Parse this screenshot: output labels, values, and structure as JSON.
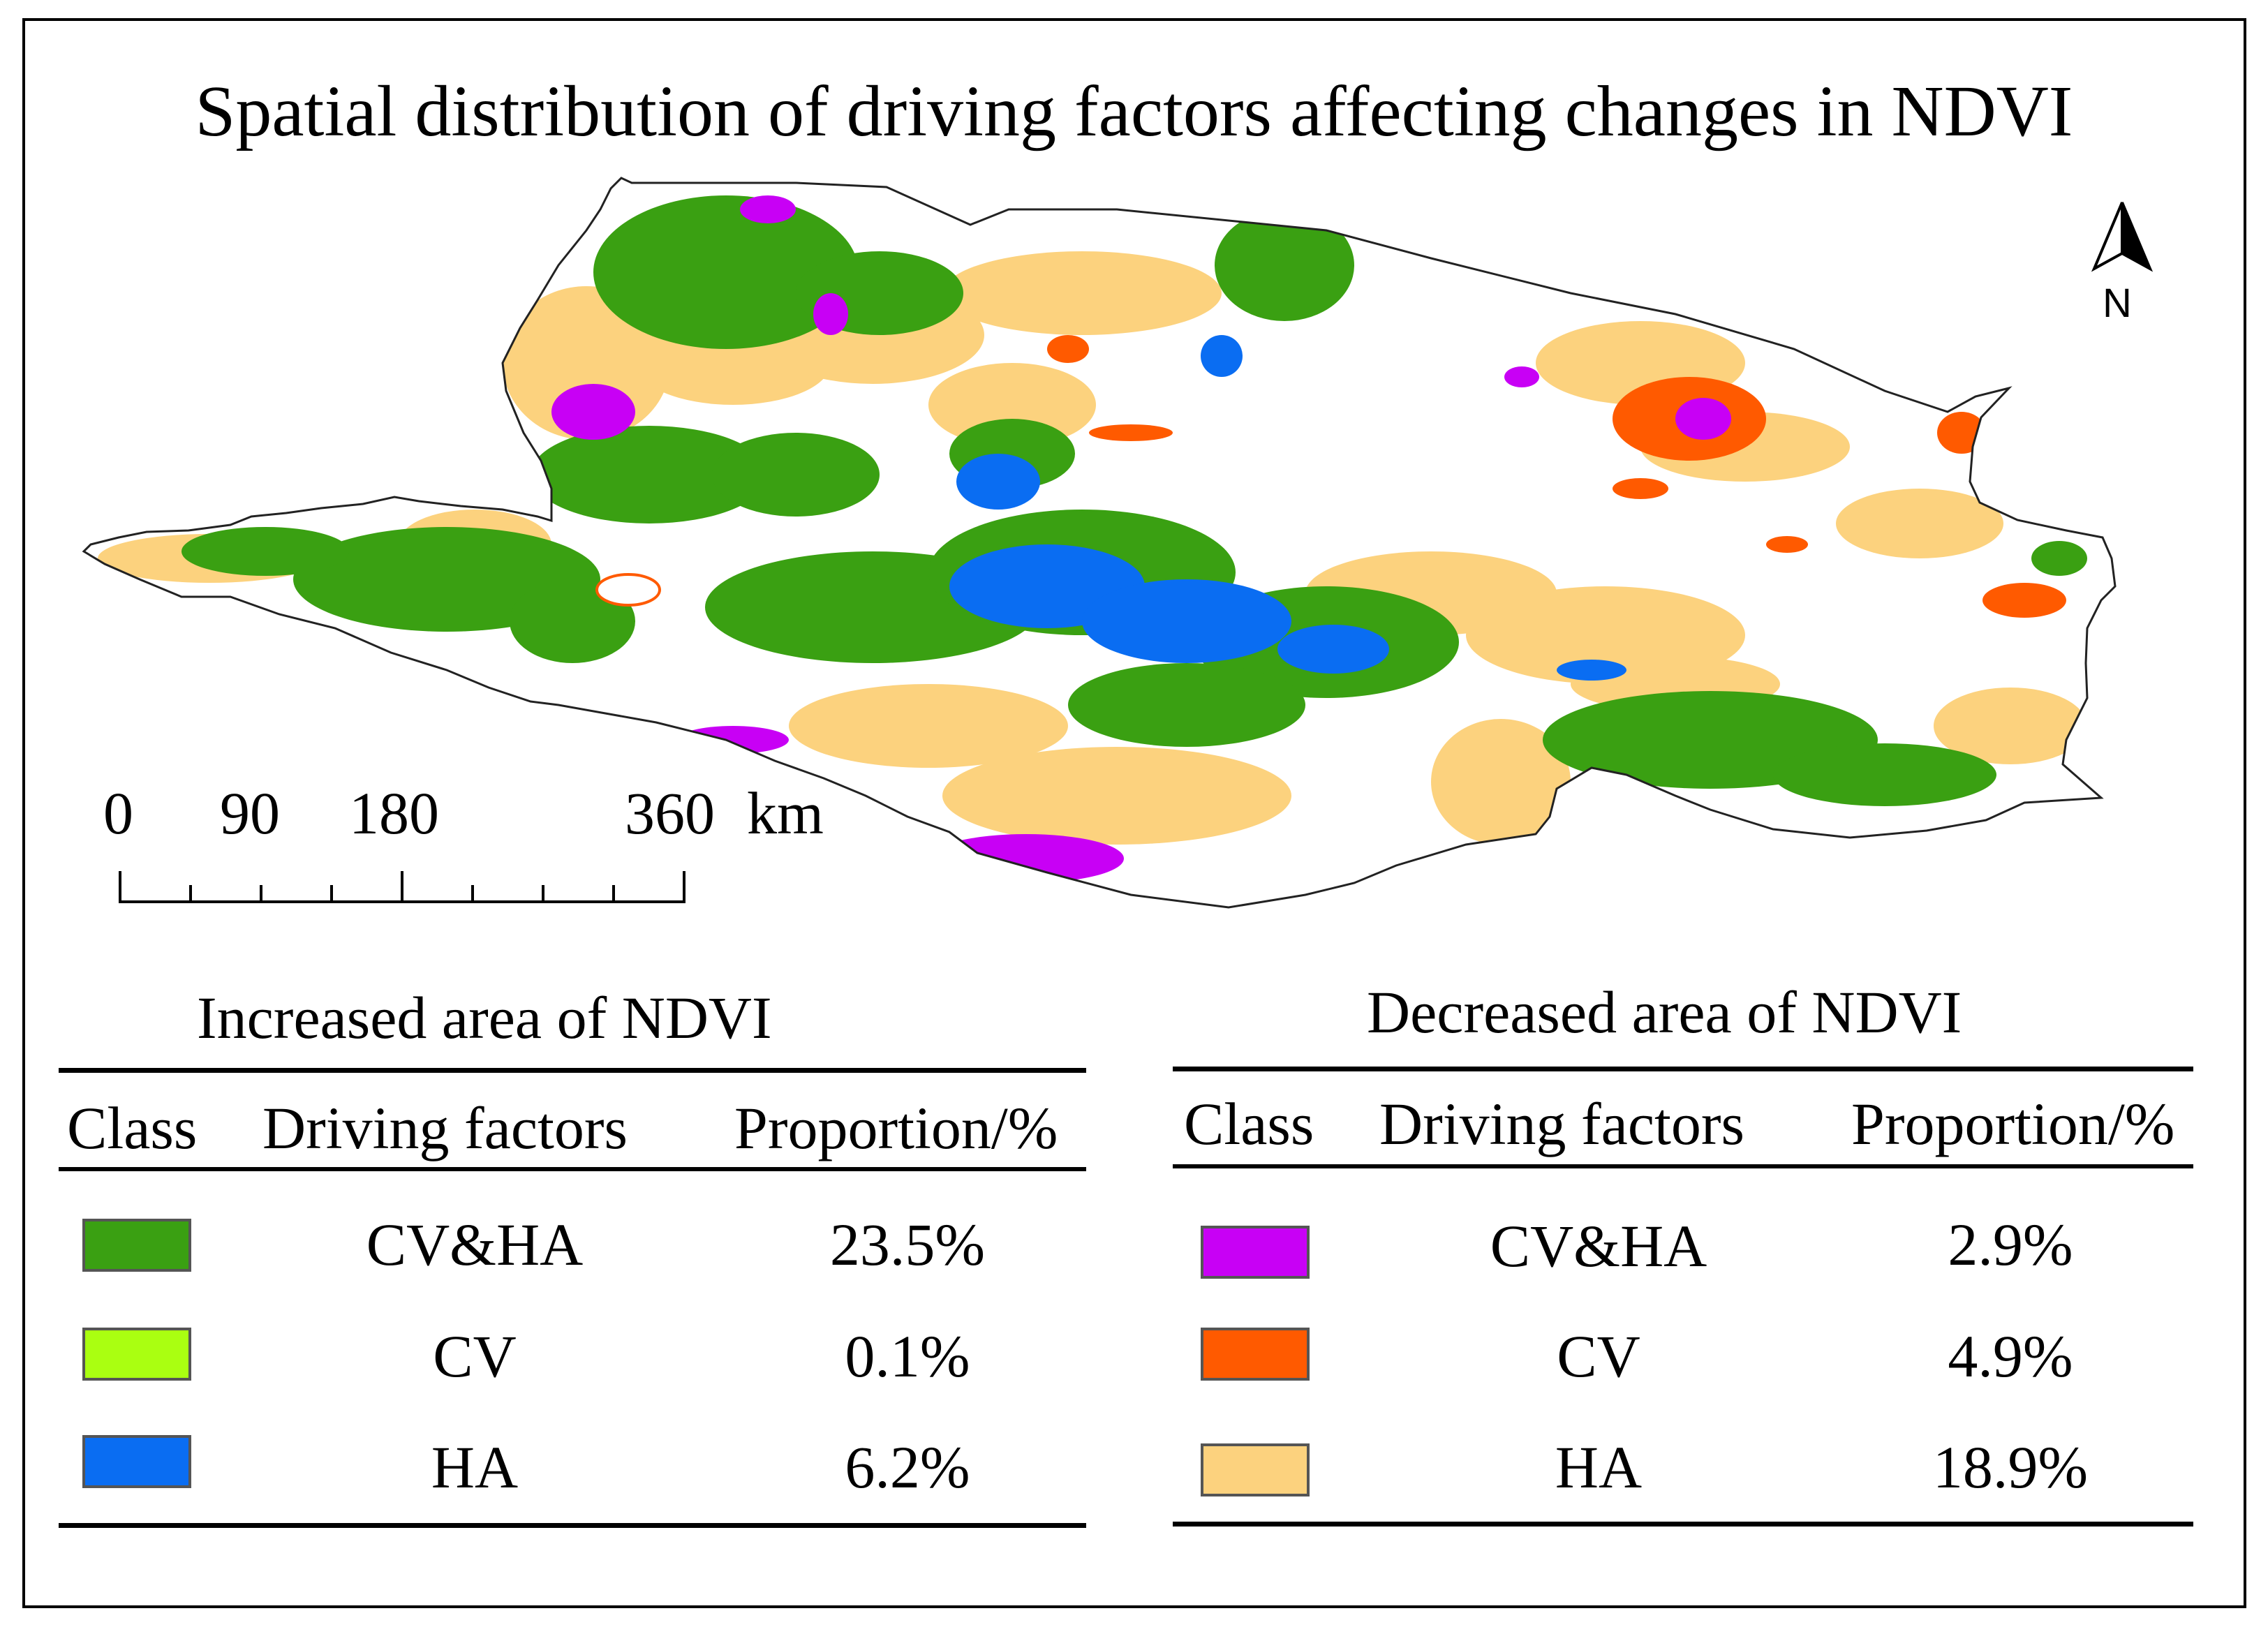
{
  "title": "Spatial distribution of driving factors affecting changes in NDVI",
  "north_label": "N",
  "scale": {
    "labels": [
      "0",
      "90",
      "180",
      "360"
    ],
    "unit": "km"
  },
  "map_regions": [
    {
      "name": "CV&HA increase",
      "color": "#3aa012"
    },
    {
      "name": "HA increase",
      "color": "#0a6df2"
    },
    {
      "name": "CV&HA decrease",
      "color": "#c800f5"
    },
    {
      "name": "CV decrease",
      "color": "#ff5a00"
    },
    {
      "name": "HA decrease",
      "color": "#fcd27e"
    }
  ],
  "legend_increased": {
    "title": "Increased area of NDVI",
    "headers": [
      "Class",
      "Driving factors",
      "Proportion/%"
    ],
    "rows": [
      {
        "factor": "CV&HA",
        "proportion": "23.5%",
        "color": "#3aa012"
      },
      {
        "factor": "CV",
        "proportion": "0.1%",
        "color": "#aaff11"
      },
      {
        "factor": "HA",
        "proportion": "6.2%",
        "color": "#0a6df2"
      }
    ]
  },
  "legend_decreased": {
    "title": "Decreased area of NDVI",
    "headers": [
      "Class",
      "Driving factors",
      "Proportion/%"
    ],
    "rows": [
      {
        "factor": "CV&HA",
        "proportion": "2.9%",
        "color": "#c800f5"
      },
      {
        "factor": "CV",
        "proportion": "4.9%",
        "color": "#ff5a00"
      },
      {
        "factor": "HA",
        "proportion": "18.9%",
        "color": "#fcd27e"
      }
    ]
  }
}
